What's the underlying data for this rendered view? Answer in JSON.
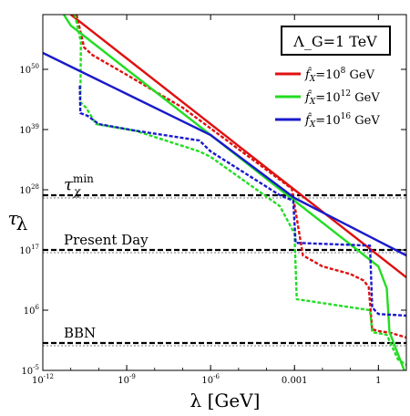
{
  "chart_data": {
    "type": "line",
    "xlabel": "λ [GeV]",
    "ylabel": "τ_λ",
    "x_scale": "log",
    "y_scale": "log",
    "xlim": [
      1e-12,
      10
    ],
    "ylim": [
      1e-05,
      1e+60
    ],
    "x_ticks": [
      {
        "value": 1e-12,
        "label": "10^{-12}"
      },
      {
        "value": 1e-09,
        "label": "10^{-9}"
      },
      {
        "value": 1e-06,
        "label": "10^{-6}"
      },
      {
        "value": 0.001,
        "label": "0.001"
      },
      {
        "value": 1,
        "label": "1"
      }
    ],
    "y_ticks": [
      {
        "value": 1e-05,
        "label": "10^{-5}"
      },
      {
        "value": 1000000.0,
        "label": "10^{6}"
      },
      {
        "value": 1e+17,
        "label": "10^{17}"
      },
      {
        "value": 1e+28,
        "label": "10^{28}"
      },
      {
        "value": 1e+39,
        "label": "10^{39}"
      },
      {
        "value": 1e+50,
        "label": "10^{50}"
      }
    ],
    "legend": {
      "title": "Λ_G=1 TeV",
      "placement": "top-right",
      "entries": [
        {
          "label_base": "f̂",
          "label_sub": "X",
          "label_rest": "=10",
          "label_sup": "8",
          "label_unit": " GeV",
          "color": "#e01010"
        },
        {
          "label_base": "f̂",
          "label_sub": "X",
          "label_rest": "=10",
          "label_sup": "12",
          "label_unit": " GeV",
          "color": "#22dd22"
        },
        {
          "label_base": "f̂",
          "label_sub": "X",
          "label_rest": "=10",
          "label_sup": "16",
          "label_unit": " GeV",
          "color": "#1a1acc"
        }
      ]
    },
    "series": [
      {
        "name": "f̂X=10^8 GeV",
        "color": "#e01010",
        "style": "solid",
        "points": [
          [
            1e-11,
            60
          ],
          [
            2e-11,
            58.8
          ],
          [
            1e-09,
            52
          ],
          [
            1e-06,
            40
          ],
          [
            0.001,
            28
          ],
          [
            0.1,
            20
          ],
          [
            10,
            12
          ]
        ]
      },
      {
        "name": "f̂X=10^8 GeV",
        "color": "#e01010",
        "style": "dashed",
        "points": [
          [
            1.6e-11,
            60
          ],
          [
            3e-11,
            54
          ],
          [
            6e-11,
            52.6
          ],
          [
            1e-09,
            49
          ],
          [
            1e-07,
            43
          ],
          [
            0.0008,
            28.2
          ],
          [
            0.002,
            16
          ],
          [
            0.01,
            14
          ],
          [
            0.1,
            12.6
          ],
          [
            0.3,
            11.4
          ],
          [
            0.45,
            10.2
          ],
          [
            0.6,
            2.5
          ],
          [
            1,
            2.2
          ],
          [
            3,
            1.8
          ],
          [
            10,
            1
          ]
        ]
      },
      {
        "name": "f̂X=10^12 GeV",
        "color": "#22dd22",
        "style": "solid",
        "points": [
          [
            1e-12,
            66
          ],
          [
            1e-11,
            58
          ],
          [
            1e-09,
            50
          ],
          [
            1e-06,
            38
          ],
          [
            0.001,
            26
          ],
          [
            1,
            14
          ],
          [
            2,
            10
          ],
          [
            2.5,
            2
          ],
          [
            10,
            -6
          ]
        ]
      },
      {
        "name": "f̂X=10^12 GeV",
        "color": "#22dd22",
        "style": "dashed",
        "points": [
          [
            1.4e-11,
            60
          ],
          [
            2.3e-11,
            55
          ],
          [
            2.2e-11,
            44
          ],
          [
            3.5e-11,
            43
          ],
          [
            8e-11,
            40
          ],
          [
            2e-09,
            38.8
          ],
          [
            4e-07,
            35
          ],
          [
            1e-06,
            34
          ],
          [
            0.0003,
            25
          ],
          [
            0.001,
            20
          ],
          [
            0.0012,
            8
          ],
          [
            0.5,
            6
          ],
          [
            0.6,
            2
          ],
          [
            2,
            1.5
          ],
          [
            5,
            -3
          ],
          [
            10,
            -4
          ]
        ]
      },
      {
        "name": "f̂X=10^16 GeV",
        "color": "#1a1acc",
        "style": "solid",
        "points": [
          [
            1e-12,
            53
          ],
          [
            1e-10,
            48
          ],
          [
            1e-09,
            45.5
          ],
          [
            1e-06,
            38
          ],
          [
            0.001,
            26.5
          ],
          [
            10,
            16
          ]
        ]
      },
      {
        "name": "f̂X=10^16 GeV",
        "color": "#1a1acc",
        "style": "dashed",
        "points": [
          [
            2.1e-11,
            47
          ],
          [
            2.2e-11,
            42
          ],
          [
            4e-11,
            41.5
          ],
          [
            1e-10,
            40
          ],
          [
            2e-09,
            38.8
          ],
          [
            4e-07,
            37
          ],
          [
            1e-06,
            35
          ],
          [
            0.0003,
            27
          ],
          [
            0.0009,
            26
          ],
          [
            0.0011,
            18.3
          ],
          [
            0.5,
            17.8
          ],
          [
            0.6,
            6.5
          ],
          [
            1,
            5.3
          ],
          [
            10,
            5
          ]
        ]
      }
    ],
    "hlines": [
      {
        "y": 1e+27,
        "label_base": "τ",
        "label_sub": "χ",
        "label_sup": "min"
      },
      {
        "y": 1e+17,
        "label": "Present Day"
      },
      {
        "y": 1,
        "label": "BBN"
      }
    ]
  }
}
